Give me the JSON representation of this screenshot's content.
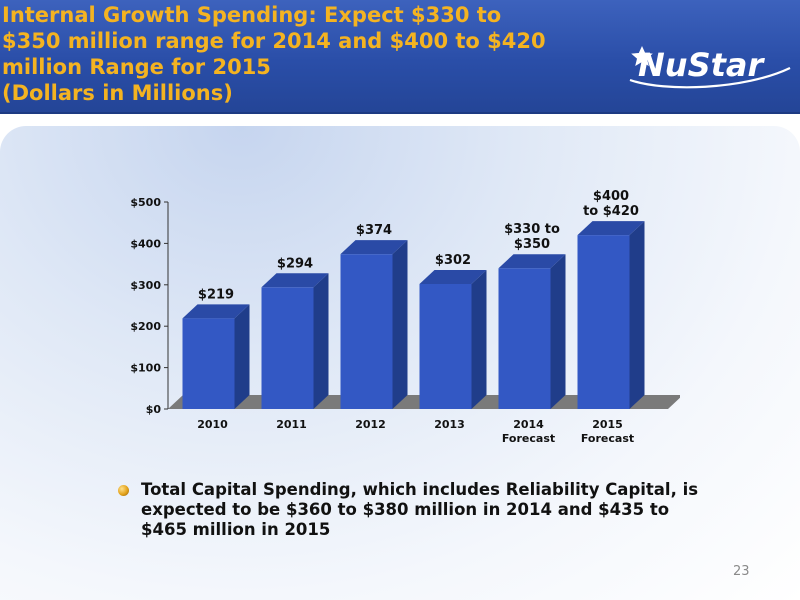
{
  "slide": {
    "title_lines": [
      "Internal Growth Spending: Expect $330 to",
      "$350 million range for 2014 and $400 to $420",
      "million Range for 2015",
      "(Dollars in Millions)"
    ],
    "logo_text": "NuStar",
    "bullet_text": "Total Capital Spending, which includes Reliability Capital, is expected to be $360 to $380 million in 2014 and $435 to $465 million in 2015",
    "page_number": "23",
    "colors": {
      "header": "#2f55b0",
      "title": "#f4b321",
      "bar_front": "#3358c4",
      "bar_side": "#203d8a",
      "bar_top": "#2a4aa6",
      "floor": "#7a7a7a"
    }
  },
  "chart_data": {
    "type": "bar",
    "categories": [
      [
        "2010"
      ],
      [
        "2011"
      ],
      [
        "2012"
      ],
      [
        "2013"
      ],
      [
        "2014",
        "Forecast"
      ],
      [
        "2015",
        "Forecast"
      ]
    ],
    "values": [
      219,
      294,
      374,
      302,
      340,
      420
    ],
    "data_labels": [
      [
        "$219"
      ],
      [
        "$294"
      ],
      [
        "$374"
      ],
      [
        "$302"
      ],
      [
        "$330 to",
        "$350"
      ],
      [
        "$400",
        "to $420"
      ]
    ],
    "ylim": [
      0,
      500
    ],
    "yticks": [
      0,
      100,
      200,
      300,
      400,
      500
    ],
    "ytick_labels": [
      "$0",
      "$100",
      "$200",
      "$300",
      "$400",
      "$500"
    ],
    "bar_style": "3d",
    "grid": false,
    "legend": "none"
  }
}
